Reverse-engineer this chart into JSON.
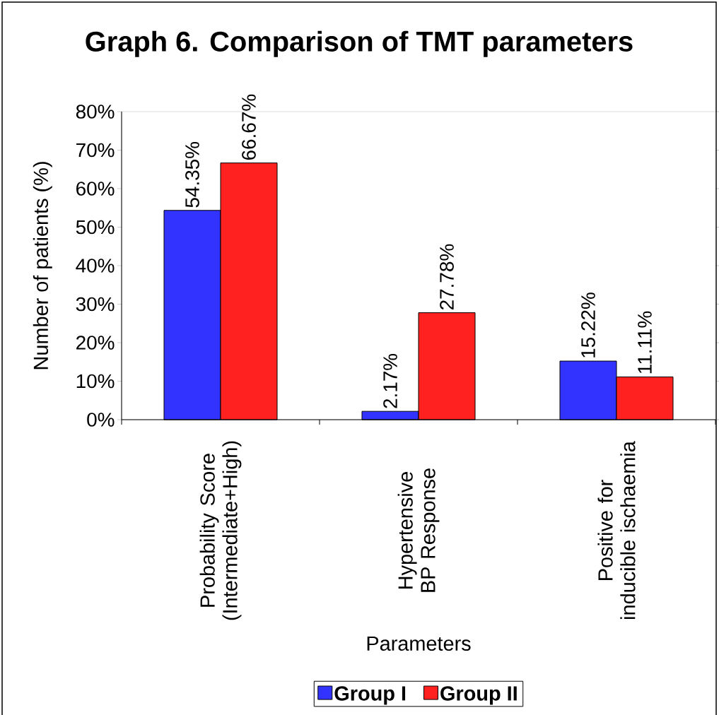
{
  "chart_data": {
    "type": "bar",
    "title": "Graph 6. Comparison of TMT parameters",
    "xlabel": "Parameters",
    "ylabel": "Number of patients (%)",
    "categories": [
      "Probability Score (Intermediate+High)",
      "Hypertensive BP Response",
      "Positive for inducible ischaemia"
    ],
    "series": [
      {
        "name": "Group I",
        "color": "#3333ff",
        "values": [
          54.35,
          2.17,
          15.22
        ],
        "value_labels": [
          "54.35%",
          "2.17%",
          "15.22%"
        ]
      },
      {
        "name": "Group II",
        "color": "#ff2020",
        "values": [
          66.67,
          27.78,
          11.11
        ],
        "value_labels": [
          "66.67%",
          "27.78%",
          "11.11%"
        ]
      }
    ],
    "ylim": [
      0,
      80
    ],
    "yticks": [
      {
        "value": 0,
        "label": "0%"
      },
      {
        "value": 10,
        "label": "10%"
      },
      {
        "value": 20,
        "label": "20%"
      },
      {
        "value": 30,
        "label": "30%"
      },
      {
        "value": 40,
        "label": "40%"
      },
      {
        "value": 50,
        "label": "50%"
      },
      {
        "value": 60,
        "label": "60%"
      },
      {
        "value": 70,
        "label": "70%"
      },
      {
        "value": 80,
        "label": "80%"
      }
    ],
    "legend": "bottom"
  }
}
